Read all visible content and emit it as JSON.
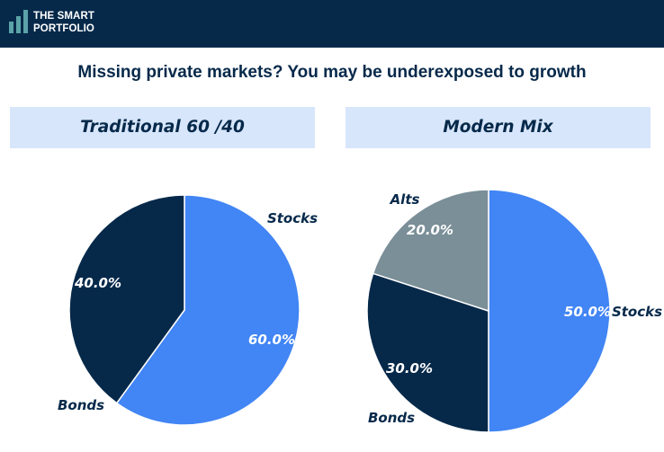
{
  "brand": {
    "line1": "THE SMART",
    "line2": "PORTFOLIO"
  },
  "title": "Missing private markets? You may be underexposed to growth",
  "colors": {
    "header": "#06294a",
    "stocks": "#4285f4",
    "bonds": "#06294a",
    "alts": "#7a8f98",
    "panel": "#d7e6fb"
  },
  "chart_data": [
    {
      "type": "pie",
      "title": "Traditional 60 /40",
      "categories": [
        "Stocks",
        "Bonds"
      ],
      "values": [
        60,
        40
      ],
      "value_labels": [
        "60.0%",
        "40.0%"
      ]
    },
    {
      "type": "pie",
      "title": "Modern Mix",
      "categories": [
        "Stocks",
        "Bonds",
        "Alts"
      ],
      "values": [
        50,
        30,
        20
      ],
      "value_labels": [
        "50.0%",
        "30.0%",
        "20.0%"
      ]
    }
  ]
}
